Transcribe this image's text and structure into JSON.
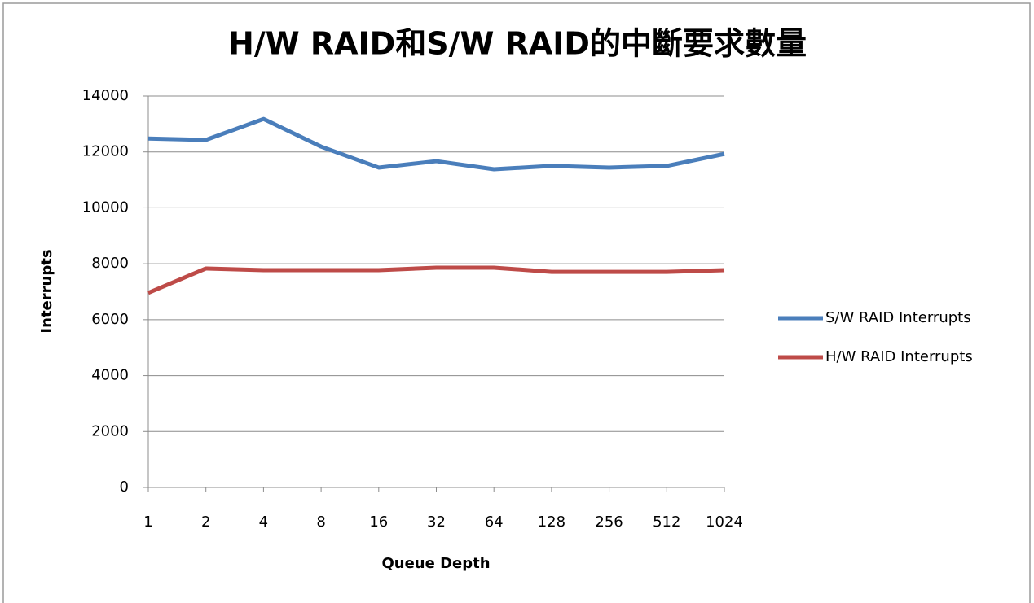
{
  "chart_data": {
    "type": "line",
    "title": "H/W RAID和S/W RAID的中斷要求數量",
    "x_label": "Queue Depth",
    "y_label": "Interrupts",
    "categories": [
      "1",
      "2",
      "4",
      "8",
      "16",
      "32",
      "64",
      "128",
      "256",
      "512",
      "1024"
    ],
    "series": [
      {
        "name": "S/W RAID Interrupts",
        "color": "#4a7ebb",
        "values": [
          12480,
          12430,
          13180,
          12190,
          11440,
          11670,
          11380,
          11500,
          11440,
          11500,
          11930
        ]
      },
      {
        "name": "H/W RAID Interrupts",
        "color": "#be4b48",
        "values": [
          6960,
          7830,
          7770,
          7770,
          7770,
          7860,
          7860,
          7710,
          7710,
          7710,
          7770
        ]
      }
    ],
    "ylim": [
      0,
      14000
    ],
    "yticks": [
      0,
      2000,
      4000,
      6000,
      8000,
      10000,
      12000,
      14000
    ],
    "grid": true,
    "legend": "right"
  }
}
